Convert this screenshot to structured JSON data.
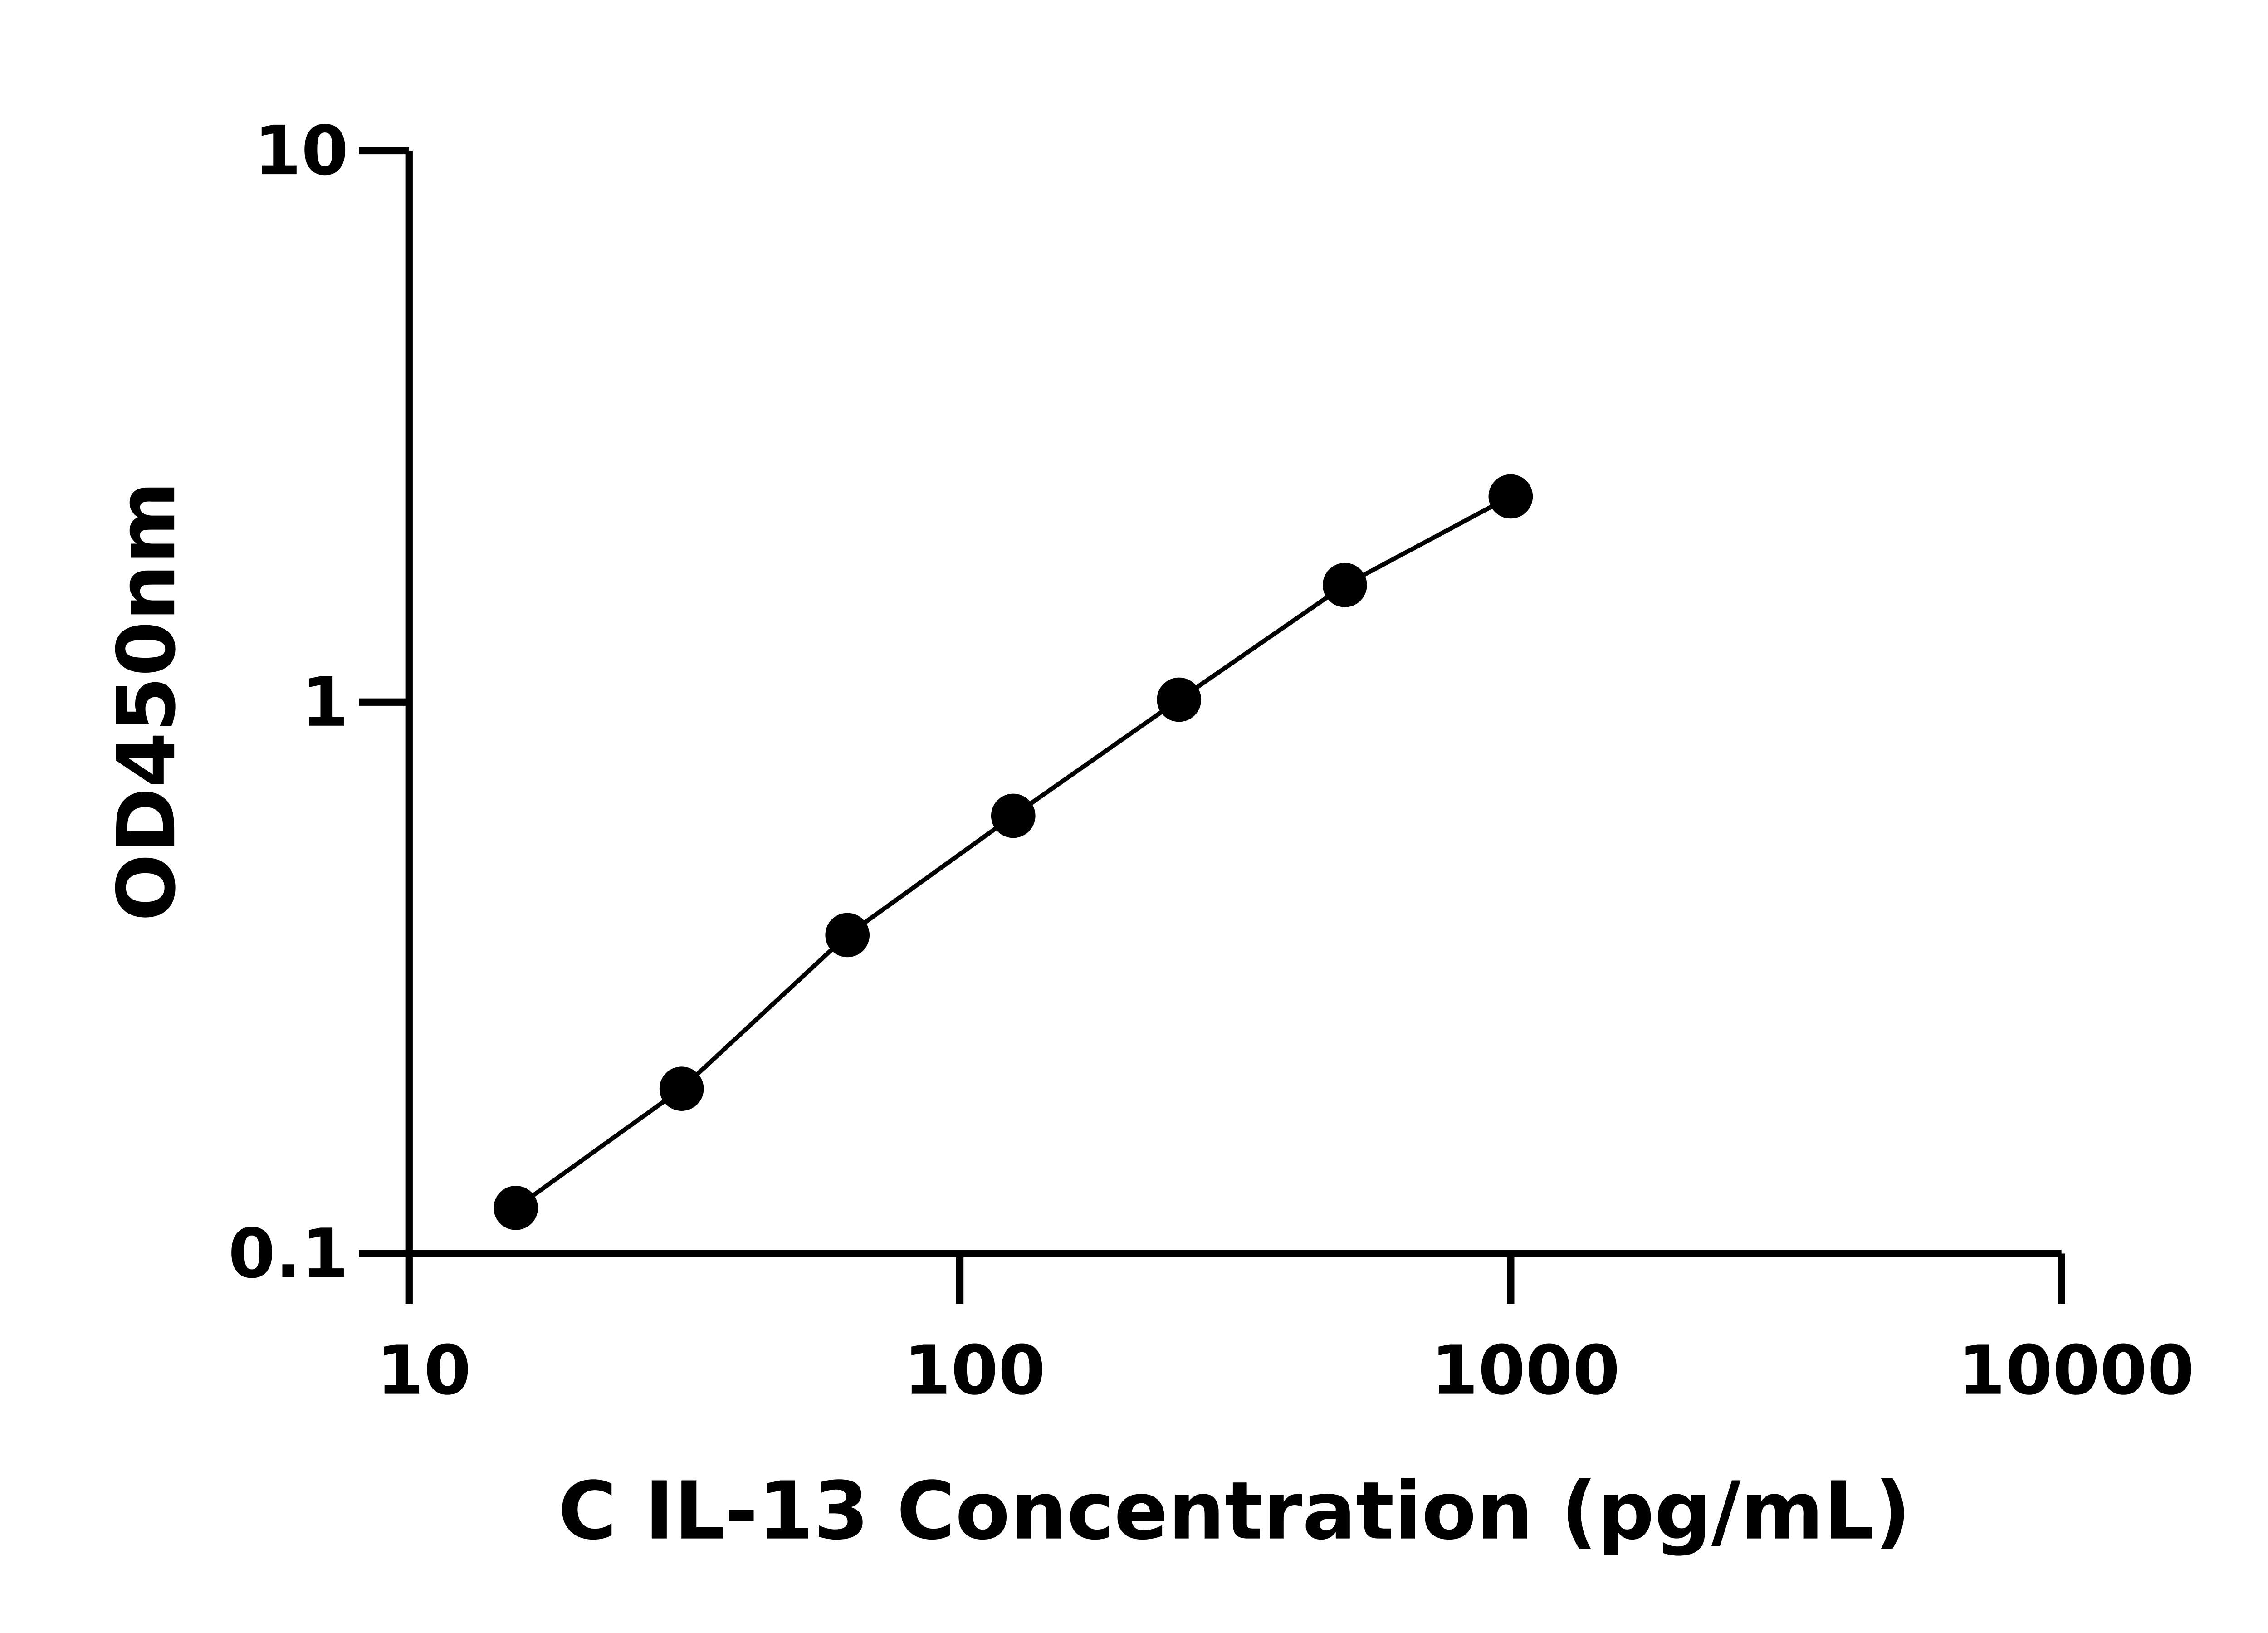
{
  "chart_data": {
    "type": "line",
    "title": "",
    "xlabel": "C IL-13 Concentration (pg/mL)",
    "ylabel": "OD450nm",
    "x_scale": "log",
    "y_scale": "log",
    "xlim": [
      10,
      10000
    ],
    "ylim": [
      0.1,
      10
    ],
    "x_ticks": [
      10,
      100,
      1000,
      10000
    ],
    "x_tick_labels": [
      "10",
      "100",
      "1000",
      "10000"
    ],
    "y_ticks": [
      0.1,
      1,
      10
    ],
    "y_tick_labels": [
      "0.1",
      "1",
      "10"
    ],
    "grid": false,
    "legend": "none",
    "series": [
      {
        "x": [
          15.625,
          31.25,
          62.5,
          125,
          250,
          500,
          1000
        ],
        "y": [
          0.121,
          0.199,
          0.378,
          0.622,
          1.01,
          1.63,
          2.36
        ],
        "marker": "circle",
        "color": "#000000"
      }
    ]
  }
}
